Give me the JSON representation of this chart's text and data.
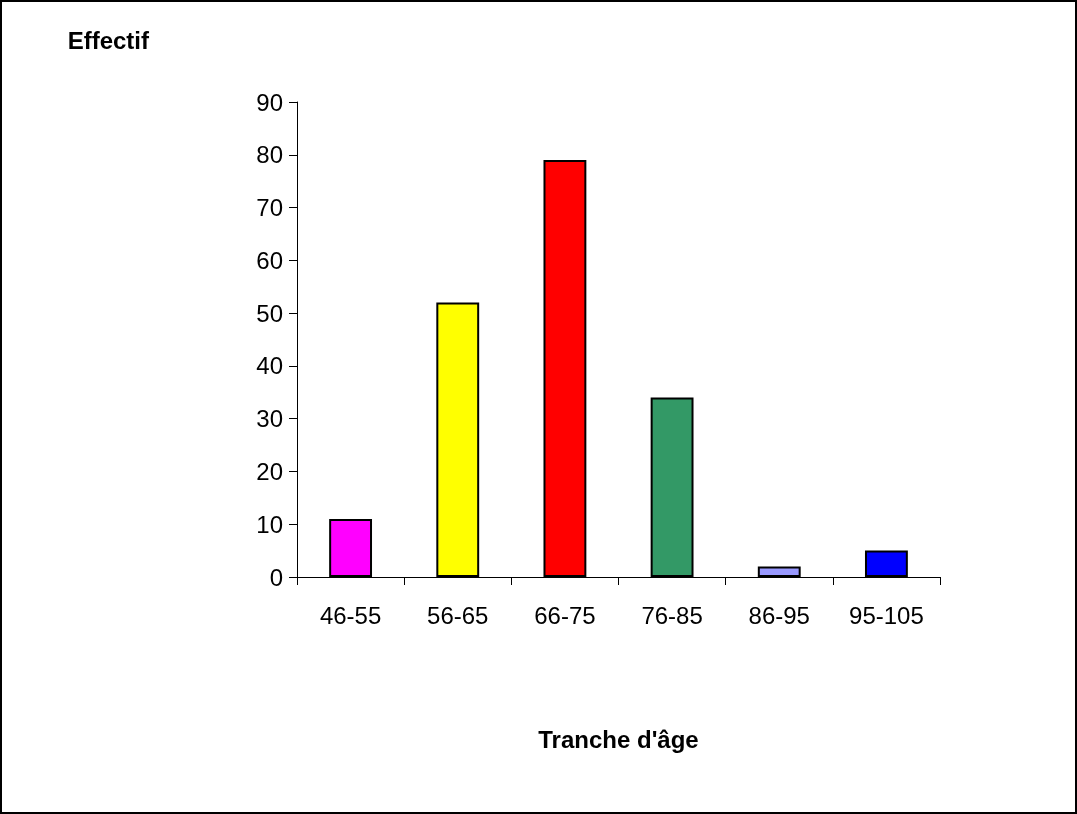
{
  "chart_data": {
    "type": "bar",
    "xlabel": "Tranche d'âge",
    "ylabel": "Effectif",
    "categories": [
      "46-55",
      "56-65",
      "66-75",
      "76-85",
      "86-95",
      "95-105"
    ],
    "values": [
      11,
      52,
      79,
      34,
      2,
      5
    ],
    "colors": [
      "#ff00ff",
      "#ffff00",
      "#ff0000",
      "#339966",
      "#9999ff",
      "#0000ff"
    ],
    "ylim": [
      0,
      90
    ],
    "yticks": [
      0,
      10,
      20,
      30,
      40,
      50,
      60,
      70,
      80,
      90
    ],
    "grid": false
  }
}
